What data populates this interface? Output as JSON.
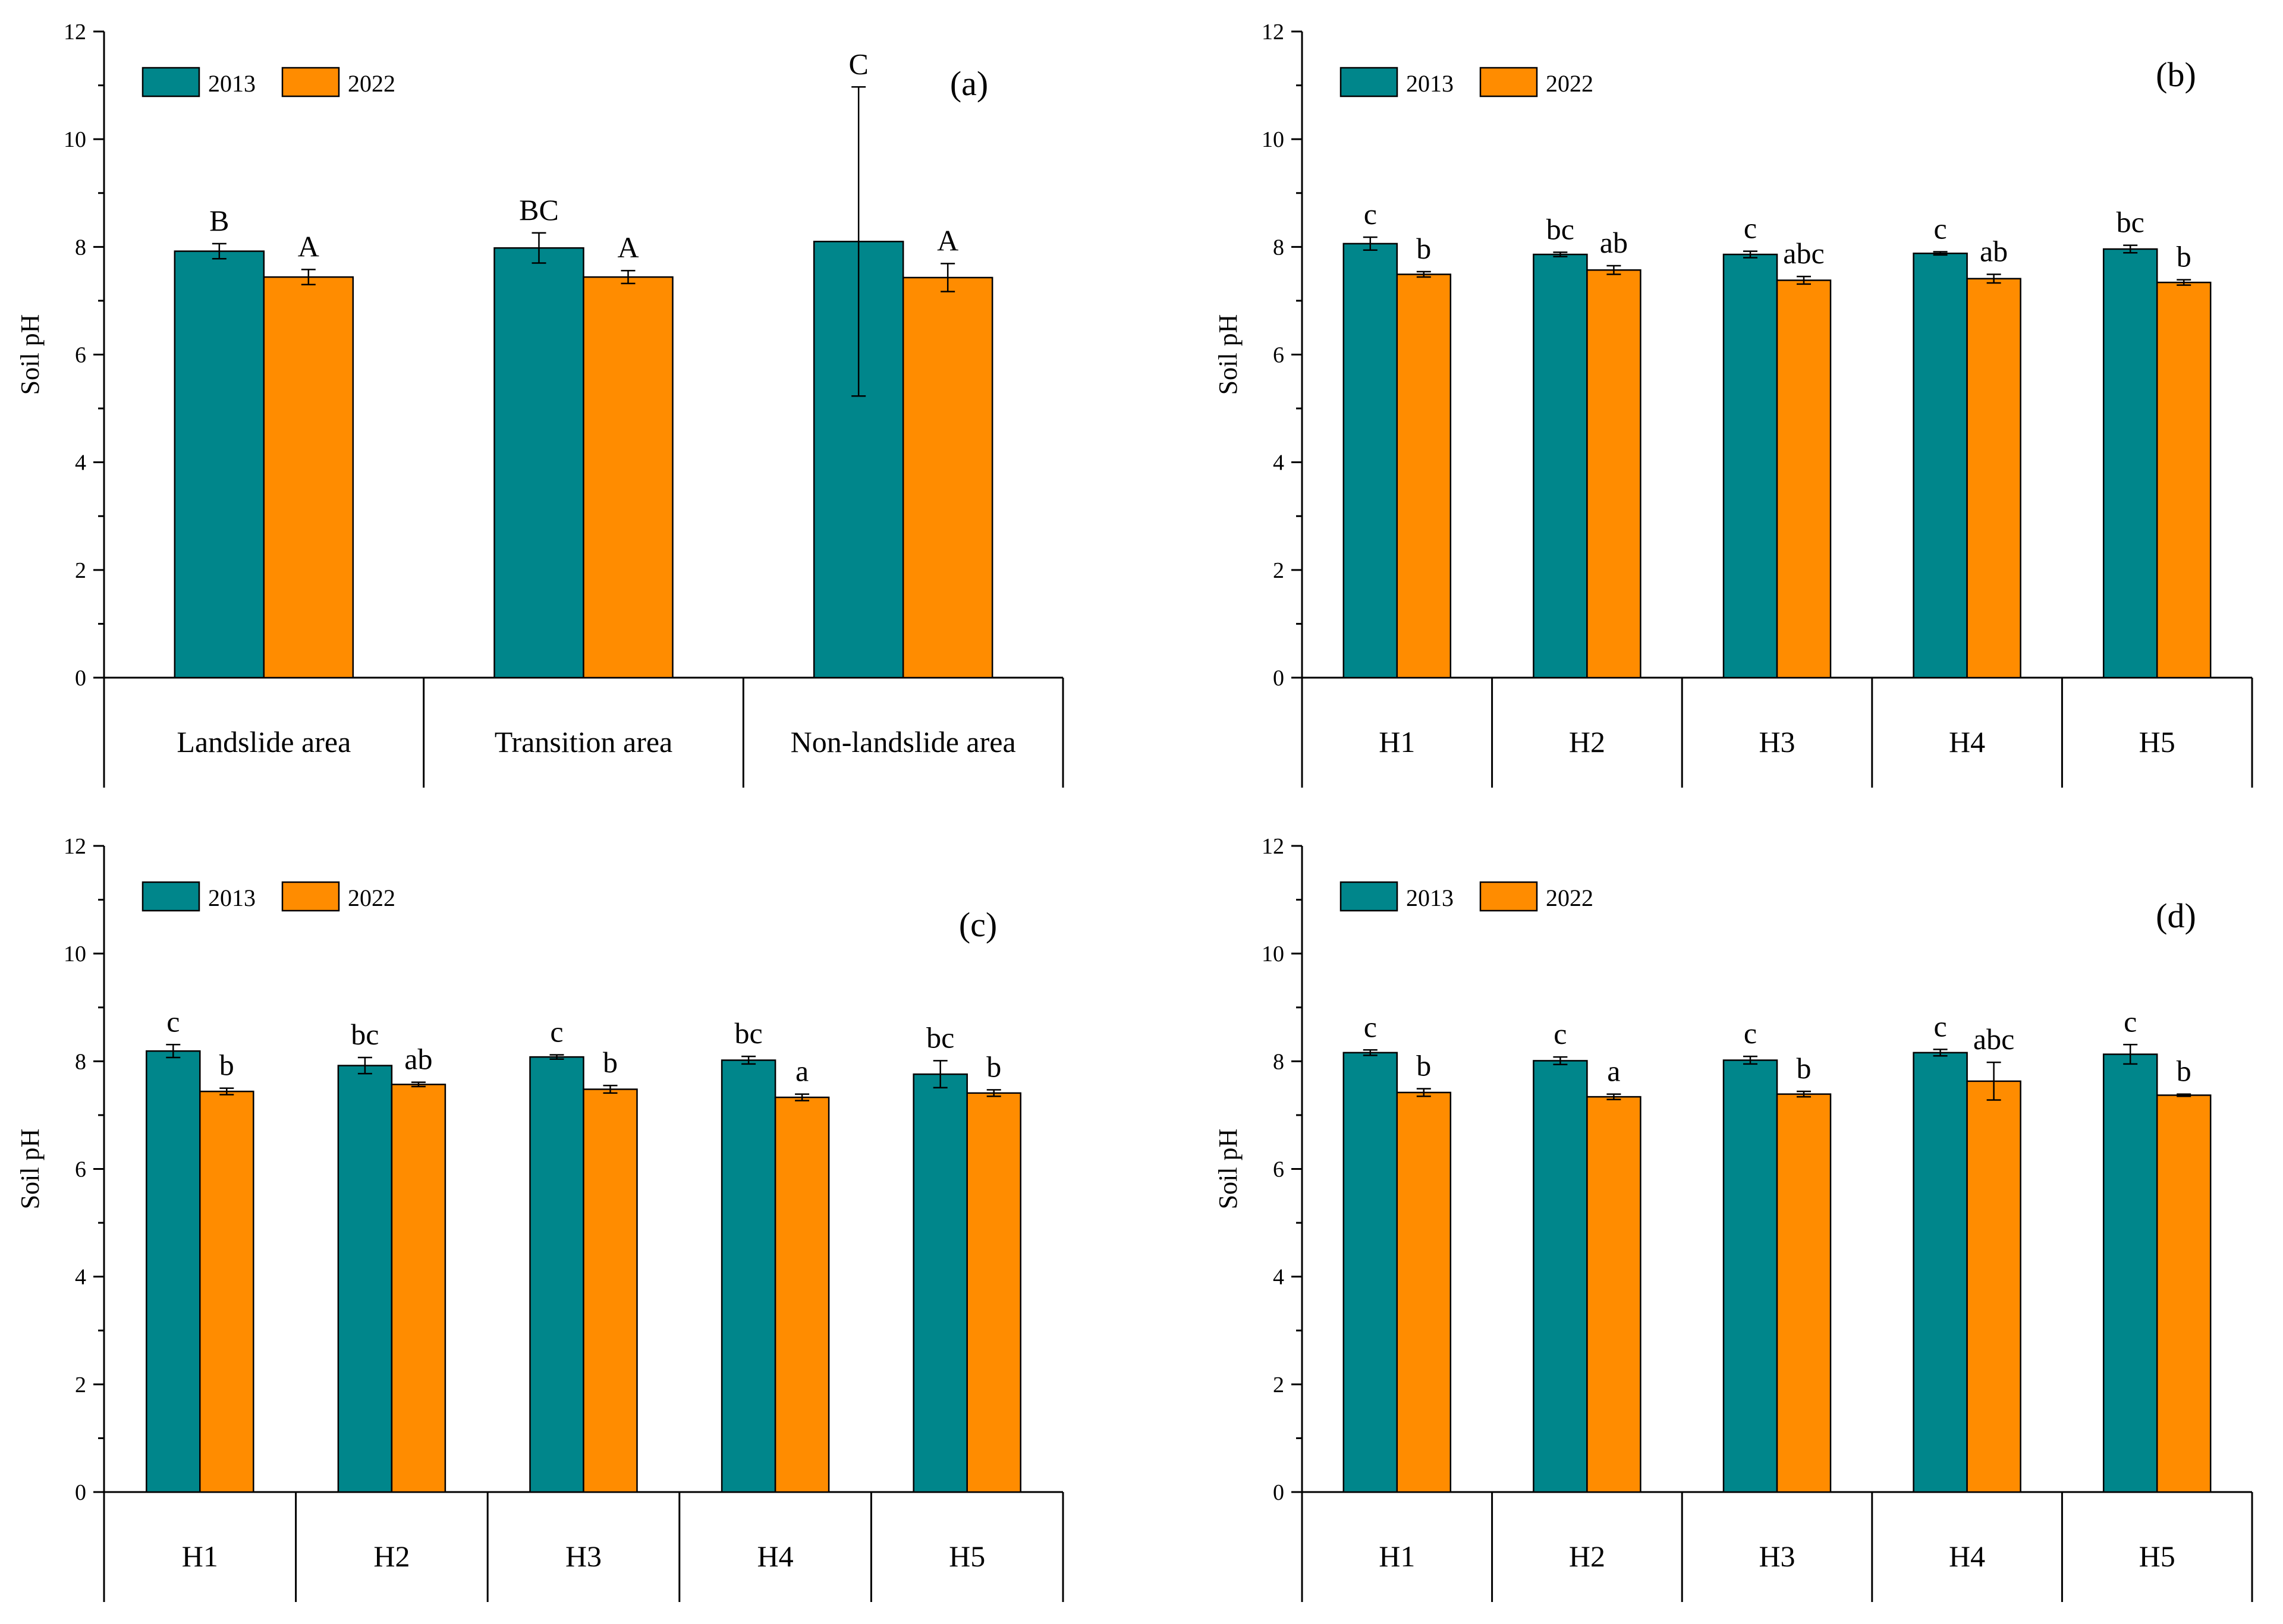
{
  "colors": {
    "series_2013": "#00868b",
    "series_2022": "#ff8c00",
    "axis": "#000000"
  },
  "chart_data": [
    {
      "type": "bar",
      "panel": "(a)",
      "ylabel": "Soil pH",
      "ylim": [
        0,
        12
      ],
      "yticks": [
        "0",
        "2",
        "4",
        "6",
        "8",
        "10",
        "12"
      ],
      "categories": [
        "Landslide area",
        "Transition area",
        "Non-landslide area"
      ],
      "series": [
        {
          "name": "2013",
          "values": [
            7.92,
            7.98,
            8.1
          ],
          "errors": [
            0.14,
            0.28,
            2.87
          ],
          "labels": [
            "B",
            "BC",
            "C"
          ]
        },
        {
          "name": "2022",
          "values": [
            7.44,
            7.44,
            7.43
          ],
          "errors": [
            0.14,
            0.12,
            0.26
          ],
          "labels": [
            "A",
            "A",
            "A"
          ]
        }
      ]
    },
    {
      "type": "bar",
      "panel": "(b)",
      "ylabel": "Soil pH",
      "ylim": [
        0,
        12
      ],
      "yticks": [
        "0",
        "2",
        "4",
        "6",
        "8",
        "10",
        "12"
      ],
      "categories": [
        "H1",
        "H2",
        "H3",
        "H4",
        "H5"
      ],
      "series": [
        {
          "name": "2013",
          "values": [
            8.06,
            7.86,
            7.86,
            7.88,
            7.96
          ],
          "errors": [
            0.12,
            0.04,
            0.06,
            0.03,
            0.07
          ],
          "labels": [
            "c",
            "bc",
            "c",
            "c",
            "bc"
          ]
        },
        {
          "name": "2022",
          "values": [
            7.49,
            7.57,
            7.38,
            7.41,
            7.34
          ],
          "errors": [
            0.05,
            0.08,
            0.07,
            0.08,
            0.05
          ],
          "labels": [
            "b",
            "ab",
            "abc",
            "ab",
            "b"
          ]
        }
      ]
    },
    {
      "type": "bar",
      "panel": "(c)",
      "ylabel": "Soil pH",
      "ylim": [
        0,
        12
      ],
      "yticks": [
        "0",
        "2",
        "4",
        "6",
        "8",
        "10",
        "12"
      ],
      "categories": [
        "H1",
        "H2",
        "H3",
        "H4",
        "H5"
      ],
      "series": [
        {
          "name": "2013",
          "values": [
            8.19,
            7.92,
            8.08,
            8.02,
            7.76
          ],
          "errors": [
            0.12,
            0.15,
            0.04,
            0.07,
            0.25
          ],
          "labels": [
            "c",
            "bc",
            "c",
            "bc",
            "bc"
          ]
        },
        {
          "name": "2022",
          "values": [
            7.44,
            7.57,
            7.48,
            7.33,
            7.41
          ],
          "errors": [
            0.06,
            0.04,
            0.07,
            0.06,
            0.06
          ],
          "labels": [
            "b",
            "ab",
            "b",
            "a",
            "b"
          ]
        }
      ]
    },
    {
      "type": "bar",
      "panel": "(d)",
      "ylabel": "Soil pH",
      "ylim": [
        0,
        12
      ],
      "yticks": [
        "0",
        "2",
        "4",
        "6",
        "8",
        "10",
        "12"
      ],
      "categories": [
        "H1",
        "H2",
        "H3",
        "H4",
        "H5"
      ],
      "series": [
        {
          "name": "2013",
          "values": [
            8.16,
            8.01,
            8.02,
            8.16,
            8.13
          ],
          "errors": [
            0.05,
            0.07,
            0.07,
            0.06,
            0.18
          ],
          "labels": [
            "c",
            "c",
            "c",
            "c",
            "c"
          ]
        },
        {
          "name": "2022",
          "values": [
            7.42,
            7.34,
            7.39,
            7.63,
            7.37
          ],
          "errors": [
            0.07,
            0.05,
            0.05,
            0.35,
            0.02
          ],
          "labels": [
            "b",
            "a",
            "b",
            "abc",
            "b"
          ]
        }
      ]
    }
  ]
}
